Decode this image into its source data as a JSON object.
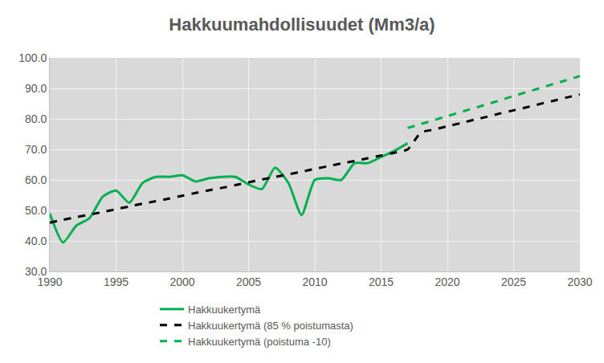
{
  "chart_data": {
    "type": "line",
    "title": "Hakkuumahdollisuudet (Mm3/a)",
    "x": [
      1990,
      1991,
      1992,
      1993,
      1994,
      1995,
      1996,
      1997,
      1998,
      1999,
      2000,
      2001,
      2002,
      2003,
      2004,
      2005,
      2006,
      2007,
      2008,
      2009,
      2010,
      2011,
      2012,
      2013,
      2014,
      2015,
      2016,
      2017,
      2018,
      2019,
      2020,
      2021,
      2022,
      2023,
      2024,
      2025,
      2026,
      2027,
      2028,
      2029,
      2030
    ],
    "series": [
      {
        "name": "Hakkuukertymä",
        "color": "#00b050",
        "line_style": "solid",
        "values": [
          49,
          39.5,
          45,
          47.5,
          54.5,
          56.5,
          52.5,
          59,
          61,
          61,
          61.5,
          59.5,
          60.5,
          61,
          61,
          58.5,
          57,
          64,
          59,
          48.5,
          60,
          60.5,
          60,
          65.5,
          65.5,
          67.5,
          69.5,
          72,
          null,
          null,
          null,
          null,
          null,
          null,
          null,
          null,
          null,
          null,
          null,
          null,
          null
        ]
      },
      {
        "name": "Hakkuukertymä (85 % poistumasta)",
        "color": "#000000",
        "line_style": "dashed",
        "values": [
          46,
          46.9,
          47.8,
          48.6,
          49.5,
          50.4,
          51.3,
          52.2,
          53,
          53.9,
          54.8,
          55.7,
          56.6,
          57.4,
          58.3,
          59.2,
          60.1,
          61,
          61.8,
          62.7,
          63.6,
          64.5,
          65.4,
          66.2,
          67.1,
          68,
          68.9,
          70,
          75.5,
          76.5,
          77.6,
          78.6,
          79.7,
          80.7,
          81.8,
          82.8,
          83.8,
          84.9,
          85.9,
          87,
          88
        ]
      },
      {
        "name": "Hakkuukertymä (poistuma -10)",
        "color": "#00b050",
        "line_style": "dashed",
        "values": [
          null,
          null,
          null,
          null,
          null,
          null,
          null,
          null,
          null,
          null,
          null,
          null,
          null,
          null,
          null,
          null,
          null,
          null,
          null,
          null,
          null,
          null,
          null,
          null,
          null,
          null,
          null,
          77,
          78.3,
          79.6,
          80.9,
          82.2,
          83.5,
          84.8,
          86.1,
          87.5,
          88.8,
          90.1,
          91.4,
          92.7,
          94
        ]
      }
    ],
    "xlim": [
      1990,
      2030
    ],
    "xticks": [
      1990,
      1995,
      2000,
      2005,
      2010,
      2015,
      2020,
      2025,
      2030
    ],
    "ylim": [
      30,
      100
    ],
    "yticks": [
      {
        "value": 30,
        "label": "30.0"
      },
      {
        "value": 40,
        "label": "40.0"
      },
      {
        "value": 50,
        "label": "50.0"
      },
      {
        "value": 60,
        "label": "60.0"
      },
      {
        "value": 70,
        "label": "70.0"
      },
      {
        "value": 80,
        "label": "80.0"
      },
      {
        "value": 90,
        "label": "90.0"
      },
      {
        "value": 100,
        "label": "100.0"
      }
    ],
    "grid": true,
    "legend": "bottom"
  }
}
